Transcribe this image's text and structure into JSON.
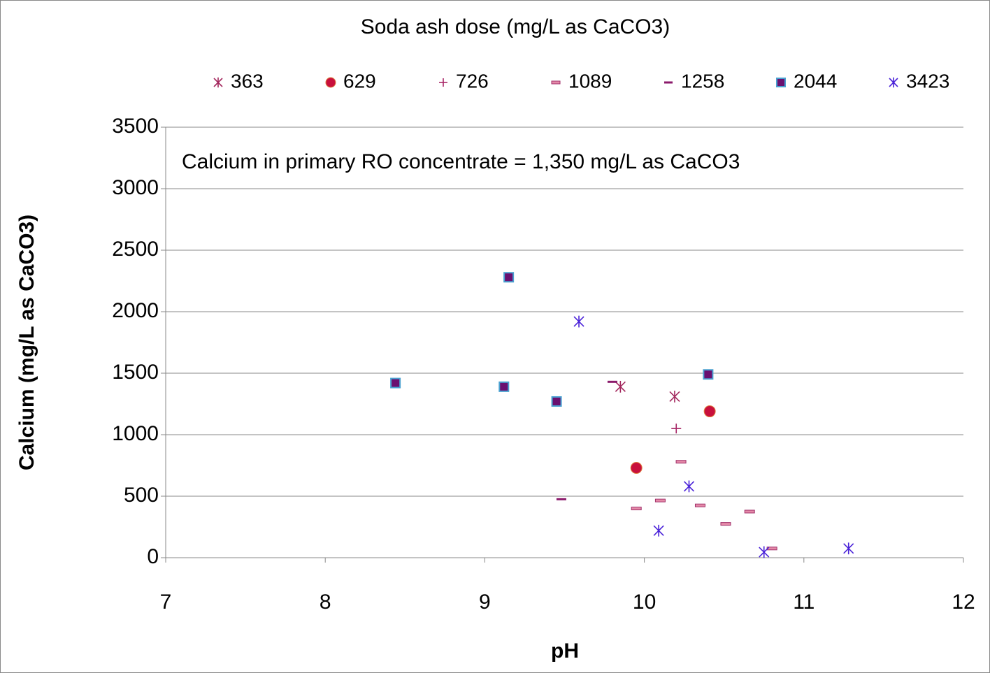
{
  "chart_data": {
    "type": "scatter",
    "legend_title": "Soda ash dose (mg/L as CaCO3)",
    "annotation": "Calcium in primary RO concentrate  = 1,350 mg/L as CaCO3",
    "x_label": "pH",
    "y_label": "Calcium (mg/L as CaCO3)",
    "xlim": [
      7,
      12
    ],
    "xticks": [
      7,
      8,
      9,
      10,
      11,
      12
    ],
    "ylim": [
      0,
      3500
    ],
    "yticks": [
      0,
      500,
      1000,
      1500,
      2000,
      2500,
      3000,
      3500
    ],
    "grid": true,
    "legend": "top",
    "series": [
      {
        "name": "363",
        "marker": "star",
        "color": "#a3285e",
        "x": [
          9.85,
          10.19
        ],
        "y": [
          1390,
          1310
        ]
      },
      {
        "name": "629",
        "marker": "circle",
        "color": "#c8103c",
        "x": [
          9.95,
          10.41
        ],
        "y": [
          730,
          1190
        ]
      },
      {
        "name": "726",
        "marker": "plus",
        "color": "#a82868",
        "x": [
          10.2
        ],
        "y": [
          1050
        ]
      },
      {
        "name": "1089",
        "marker": "box-dash",
        "color": "#e58aa8",
        "x": [
          9.95,
          10.1,
          10.23,
          10.35,
          10.51,
          10.66,
          10.8
        ],
        "y": [
          400,
          465,
          780,
          425,
          275,
          375,
          75
        ]
      },
      {
        "name": "1258",
        "marker": "dash",
        "color": "#8b1a6b",
        "x": [
          9.48,
          9.8
        ],
        "y": [
          475,
          1430
        ]
      },
      {
        "name": "2044",
        "marker": "square",
        "color": "#6a1070",
        "x": [
          8.44,
          9.12,
          9.15,
          9.45,
          10.4
        ],
        "y": [
          1420,
          1390,
          2280,
          1270,
          1490
        ]
      },
      {
        "name": "3423",
        "marker": "star",
        "color": "#4a22d8",
        "x": [
          9.59,
          10.28,
          10.09,
          10.75,
          11.28
        ],
        "y": [
          1920,
          580,
          220,
          45,
          75
        ]
      }
    ]
  }
}
